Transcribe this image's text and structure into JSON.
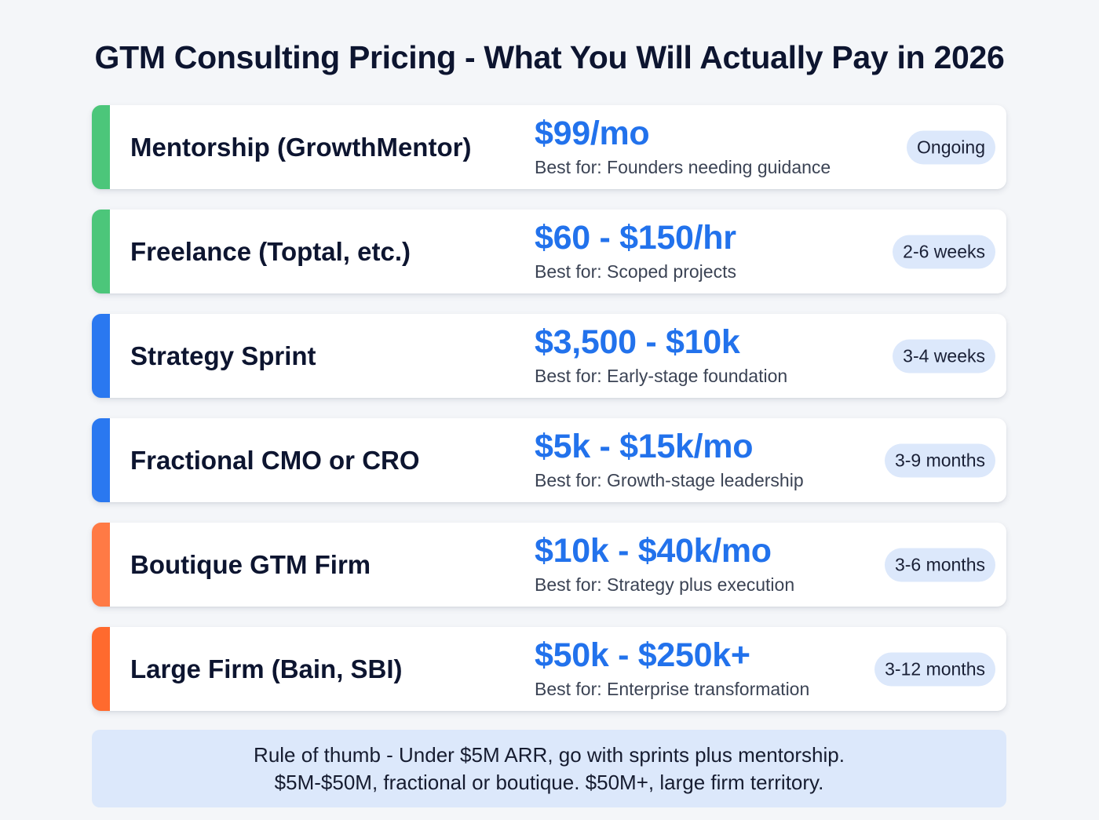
{
  "title": "GTM Consulting Pricing - What You Will Actually Pay in 2026",
  "colors": {
    "green": "#4cc67a",
    "blue": "#2a78f0",
    "orange_light": "#ff7a45",
    "orange": "#ff6a2e",
    "price": "#2272ec",
    "badge_bg": "#dce8fb"
  },
  "tiers": [
    {
      "name": "Mentorship (GrowthMentor)",
      "price": "$99/mo",
      "best_for": "Best for: Founders needing guidance",
      "duration": "Ongoing",
      "accent": "#4cc67a"
    },
    {
      "name": "Freelance (Toptal, etc.)",
      "price": "$60 - $150/hr",
      "best_for": "Best for: Scoped projects",
      "duration": "2-6 weeks",
      "accent": "#4cc67a"
    },
    {
      "name": "Strategy Sprint",
      "price": "$3,500 - $10k",
      "best_for": "Best for: Early-stage foundation",
      "duration": "3-4 weeks",
      "accent": "#2a78f0"
    },
    {
      "name": "Fractional CMO or CRO",
      "price": "$5k - $15k/mo",
      "best_for": "Best for: Growth-stage leadership",
      "duration": "3-9 months",
      "accent": "#2a78f0"
    },
    {
      "name": "Boutique GTM Firm",
      "price": "$10k - $40k/mo",
      "best_for": "Best for: Strategy plus execution",
      "duration": "3-6 months",
      "accent": "#ff7a45"
    },
    {
      "name": "Large Firm (Bain, SBI)",
      "price": "$50k - $250k+",
      "best_for": "Best for: Enterprise transformation",
      "duration": "3-12 months",
      "accent": "#ff6a2e"
    }
  ],
  "note": {
    "line1": "Rule of thumb - Under $5M ARR, go with sprints plus mentorship.",
    "line2": "$5M-$50M, fractional or boutique. $50M+, large firm territory."
  }
}
